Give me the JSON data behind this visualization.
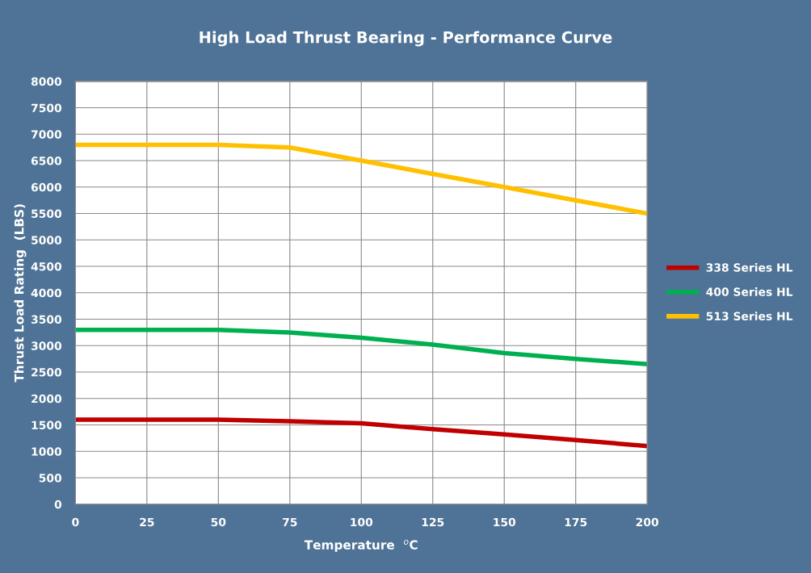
{
  "chart_data": {
    "type": "line",
    "title": "High Load Thrust Bearing - Performance Curve",
    "xlabel": "Temperature  $^{o}$C",
    "ylabel": "Thrust Load Rating  (LBS)",
    "x": [
      0,
      25,
      50,
      75,
      100,
      125,
      150,
      175,
      200
    ],
    "series": [
      {
        "name": "338 Series HL",
        "color": "#c00000",
        "values": [
          1600,
          1600,
          1600,
          1570,
          1530,
          1420,
          1320,
          1215,
          1100
        ]
      },
      {
        "name": "400 Series HL",
        "color": "#00b050",
        "values": [
          3300,
          3300,
          3300,
          3250,
          3150,
          3020,
          2860,
          2750,
          2650
        ]
      },
      {
        "name": "513 Series HL",
        "color": "#ffc000",
        "values": [
          6800,
          6800,
          6800,
          6750,
          6500,
          6250,
          6000,
          5750,
          5500
        ]
      }
    ],
    "xlim": [
      0,
      200
    ],
    "xticks": [
      0,
      25,
      50,
      75,
      100,
      125,
      150,
      175,
      200
    ],
    "ylim": [
      0,
      8000
    ],
    "yticks": [
      0,
      500,
      1000,
      1500,
      2000,
      2500,
      3000,
      3500,
      4000,
      4500,
      5000,
      5500,
      6000,
      6500,
      7000,
      7500,
      8000
    ],
    "grid": true,
    "legend": "right",
    "marker": "none",
    "line_style": "solid"
  }
}
